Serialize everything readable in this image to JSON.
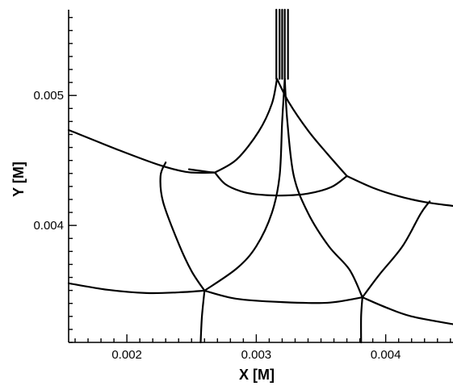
{
  "chart_data": {
    "type": "line",
    "xlabel": "X [M]",
    "ylabel": "Y [M]",
    "xlim": [
      0.00155,
      0.00452
    ],
    "ylim": [
      0.0031,
      0.00566
    ],
    "x_tick_labels": [
      "0.002",
      "0.003",
      "0.004"
    ],
    "y_tick_labels": [
      "0.004",
      "0.005"
    ],
    "x_ticks_major": [
      0.002,
      0.003,
      0.004
    ],
    "y_ticks_major": [
      0.004,
      0.005
    ],
    "minor_tick_step": 0.0001,
    "grid": false,
    "series": [
      {
        "points": [
          [
            0.00155,
            0.004734
          ],
          [
            0.00195,
            0.004575
          ],
          [
            0.00225,
            0.004465
          ],
          [
            0.00245,
            0.004413
          ],
          [
            0.00258,
            0.004405
          ],
          [
            0.00268,
            0.004407
          ]
        ]
      },
      {
        "points": [
          [
            0.00268,
            0.004407
          ],
          [
            0.00285,
            0.004509
          ],
          [
            0.00302,
            0.004725
          ],
          [
            0.00312,
            0.004935
          ],
          [
            0.00316,
            0.005128
          ]
        ]
      },
      {
        "points": [
          [
            0.00268,
            0.004407
          ],
          [
            0.00262,
            0.004413
          ],
          [
            0.00248,
            0.004432
          ]
        ]
      },
      {
        "points": [
          [
            0.00268,
            0.004407
          ],
          [
            0.00276,
            0.004318
          ],
          [
            0.00288,
            0.004263
          ],
          [
            0.003,
            0.004239
          ],
          [
            0.0032,
            0.00423
          ],
          [
            0.0034,
            0.004245
          ],
          [
            0.00358,
            0.004295
          ],
          [
            0.0037,
            0.00438
          ]
        ]
      },
      {
        "points": [
          [
            0.0037,
            0.00438
          ],
          [
            0.0039,
            0.00429
          ],
          [
            0.0041,
            0.004225
          ],
          [
            0.0043,
            0.00418
          ],
          [
            0.00452,
            0.00415
          ]
        ]
      },
      {
        "points": [
          [
            0.00316,
            0.005128
          ],
          [
            0.00325,
            0.00495
          ],
          [
            0.0034,
            0.00473
          ],
          [
            0.00355,
            0.00455
          ],
          [
            0.0037,
            0.00438
          ]
        ]
      },
      {
        "points": [
          [
            0.0023,
            0.004485
          ],
          [
            0.00226,
            0.00438
          ],
          [
            0.00228,
            0.00418
          ],
          [
            0.0024,
            0.00386
          ],
          [
            0.0025,
            0.003648
          ],
          [
            0.0026,
            0.003498
          ]
        ]
      },
      {
        "points": [
          [
            0.0026,
            0.003498
          ],
          [
            0.00285,
            0.00367
          ],
          [
            0.003,
            0.00384
          ],
          [
            0.00312,
            0.004095
          ],
          [
            0.00318,
            0.00438
          ],
          [
            0.0032,
            0.0048
          ],
          [
            0.00322,
            0.005128
          ]
        ]
      },
      {
        "points": [
          [
            0.00322,
            0.005128
          ],
          [
            0.00324,
            0.0048
          ],
          [
            0.00329,
            0.00438
          ],
          [
            0.0034,
            0.004095
          ],
          [
            0.00356,
            0.00384
          ],
          [
            0.00372,
            0.00366
          ],
          [
            0.00382,
            0.003447
          ]
        ]
      },
      {
        "points": [
          [
            0.00382,
            0.003447
          ],
          [
            0.00395,
            0.00362
          ],
          [
            0.00413,
            0.00384
          ],
          [
            0.00427,
            0.00409
          ],
          [
            0.00434,
            0.004185
          ]
        ]
      },
      {
        "points": [
          [
            0.00155,
            0.003555
          ],
          [
            0.00185,
            0.003505
          ],
          [
            0.00215,
            0.00348
          ],
          [
            0.0024,
            0.003485
          ],
          [
            0.0026,
            0.003498
          ]
        ]
      },
      {
        "points": [
          [
            0.0026,
            0.003498
          ],
          [
            0.00285,
            0.003435
          ],
          [
            0.0032,
            0.00341
          ],
          [
            0.00355,
            0.003405
          ],
          [
            0.00382,
            0.003447
          ]
        ]
      },
      {
        "points": [
          [
            0.00382,
            0.003447
          ],
          [
            0.004,
            0.00337
          ],
          [
            0.0042,
            0.0033
          ],
          [
            0.00452,
            0.00324
          ]
        ]
      },
      {
        "points": [
          [
            0.0026,
            0.003498
          ],
          [
            0.00258,
            0.0033
          ],
          [
            0.00257,
            0.0031
          ]
        ]
      },
      {
        "points": [
          [
            0.00382,
            0.003447
          ],
          [
            0.00381,
            0.0033
          ],
          [
            0.00381,
            0.0031
          ]
        ]
      },
      {
        "points": [
          [
            0.003155,
            0.005128
          ],
          [
            0.003155,
            0.00566
          ]
        ]
      },
      {
        "points": [
          [
            0.00318,
            0.005128
          ],
          [
            0.00318,
            0.00566
          ]
        ]
      },
      {
        "points": [
          [
            0.0032,
            0.005128
          ],
          [
            0.0032,
            0.00566
          ]
        ]
      },
      {
        "points": [
          [
            0.00322,
            0.005128
          ],
          [
            0.00322,
            0.00566
          ]
        ]
      },
      {
        "points": [
          [
            0.003245,
            0.005128
          ],
          [
            0.003245,
            0.00566
          ]
        ]
      }
    ]
  }
}
